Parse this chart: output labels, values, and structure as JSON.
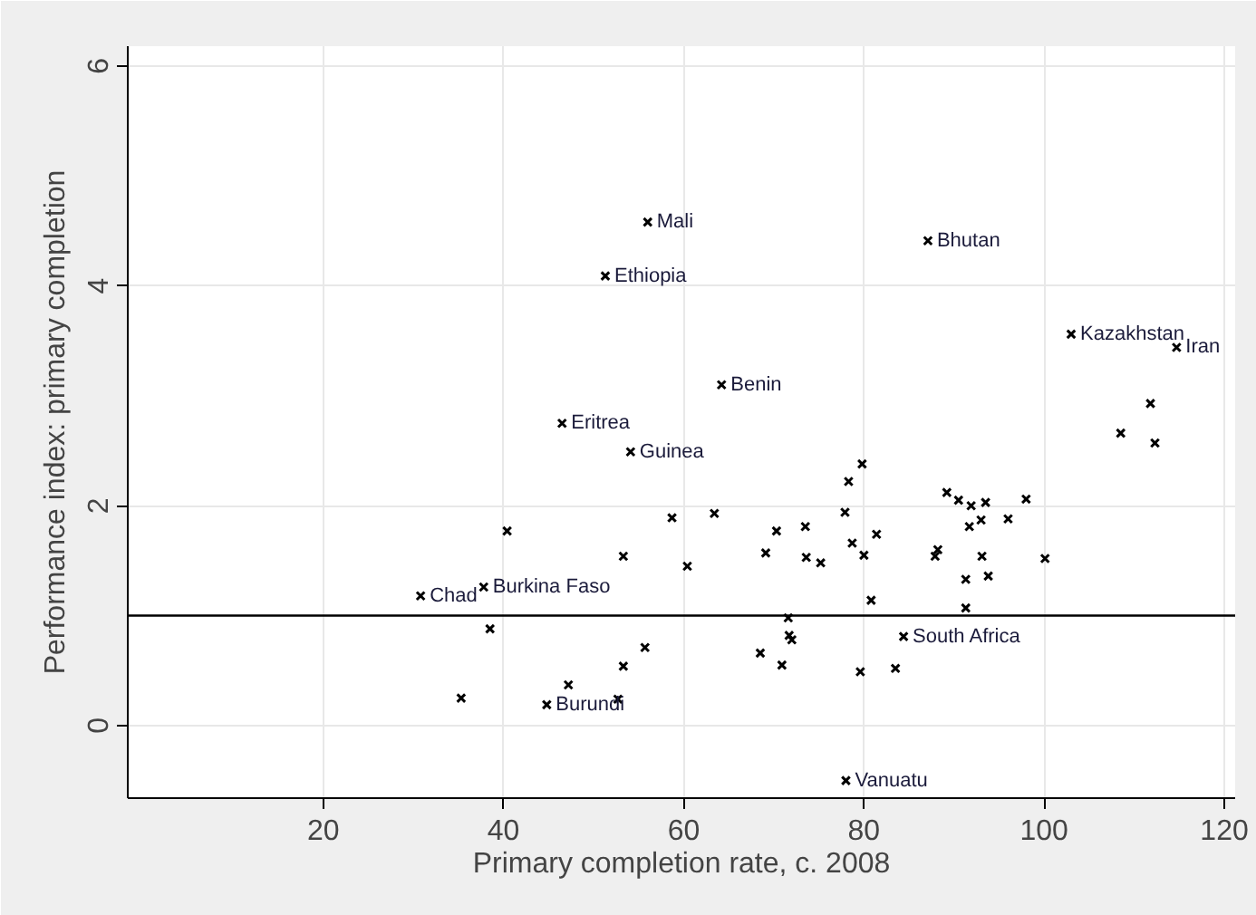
{
  "chart_data": {
    "type": "scatter",
    "xlabel": "Primary completion rate, c. 2008",
    "ylabel": "Performance index: primary completion",
    "xlim": [
      -1.7,
      121.2
    ],
    "ylim": [
      -0.66,
      6.18
    ],
    "xticks": [
      20,
      40,
      60,
      80,
      100,
      120
    ],
    "yticks": [
      0,
      2,
      4,
      6
    ],
    "grid": true,
    "marker": "cross",
    "series": [
      {
        "color": "#000000",
        "x": [
          56.0,
          51.3,
          64.2,
          46.5,
          54.1,
          87.1,
          103.0,
          114.7,
          30.8,
          37.8,
          44.8,
          84.4,
          78.0,
          40.4,
          58.7,
          63.4,
          70.3,
          73.5,
          53.3,
          60.4,
          69.1,
          73.6,
          75.2,
          38.5,
          71.6,
          71.7,
          72.0,
          68.5,
          70.9,
          55.7,
          53.3,
          47.2,
          52.7,
          35.3,
          108.5,
          112.3,
          111.8,
          79.8,
          78.3,
          77.9,
          81.4,
          78.7,
          80.0,
          89.2,
          90.5,
          91.9,
          93.5,
          98.0,
          91.7,
          93.0,
          96.0,
          88.2,
          87.9,
          93.1,
          100.1,
          91.3,
          93.8,
          80.8,
          91.3,
          79.6,
          83.5
        ],
        "values": [
          4.58,
          4.09,
          3.1,
          2.75,
          2.49,
          4.41,
          3.56,
          3.44,
          1.18,
          1.26,
          0.19,
          0.81,
          -0.5,
          1.77,
          1.89,
          1.93,
          1.77,
          1.81,
          1.54,
          1.45,
          1.57,
          1.53,
          1.48,
          0.88,
          0.98,
          0.82,
          0.78,
          0.66,
          0.55,
          0.71,
          0.54,
          0.37,
          0.24,
          0.25,
          2.66,
          2.57,
          2.93,
          2.38,
          2.22,
          1.94,
          1.74,
          1.66,
          1.55,
          2.12,
          2.05,
          2.0,
          2.03,
          2.06,
          1.81,
          1.87,
          1.88,
          1.6,
          1.54,
          1.54,
          1.52,
          1.33,
          1.36,
          1.14,
          1.07,
          0.49,
          0.52
        ]
      }
    ],
    "ref_lines": [
      {
        "axis": "y",
        "value": 1,
        "color": "#000000"
      }
    ],
    "annotations": [
      {
        "text": "Mali",
        "x": 56.0,
        "y": 4.58
      },
      {
        "text": "Ethiopia",
        "x": 51.3,
        "y": 4.09
      },
      {
        "text": "Benin",
        "x": 64.2,
        "y": 3.1
      },
      {
        "text": "Eritrea",
        "x": 46.5,
        "y": 2.75
      },
      {
        "text": "Guinea",
        "x": 54.1,
        "y": 2.49
      },
      {
        "text": "Bhutan",
        "x": 87.1,
        "y": 4.41
      },
      {
        "text": "Kazakhstan",
        "x": 103.0,
        "y": 3.56
      },
      {
        "text": "Iran",
        "x": 114.7,
        "y": 3.44
      },
      {
        "text": "Chad",
        "x": 30.8,
        "y": 1.18
      },
      {
        "text": "Burkina Faso",
        "x": 37.8,
        "y": 1.26
      },
      {
        "text": "Burundi",
        "x": 44.8,
        "y": 0.19
      },
      {
        "text": "South Africa",
        "x": 84.4,
        "y": 0.81
      },
      {
        "text": "Vanuatu",
        "x": 78.0,
        "y": -0.5
      }
    ]
  }
}
